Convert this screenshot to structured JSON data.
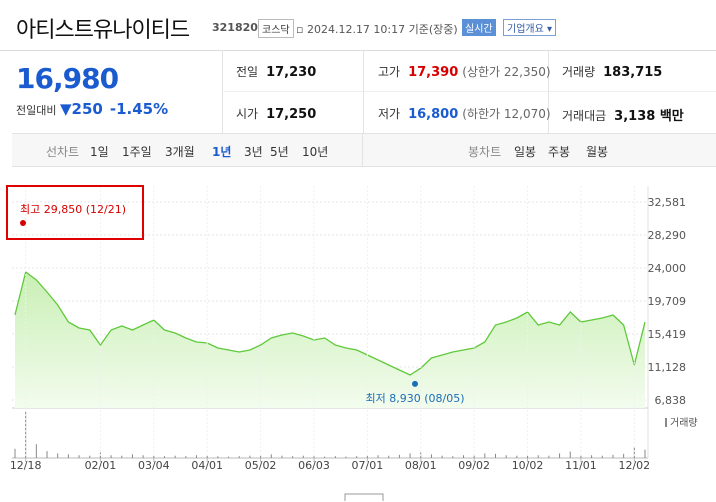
{
  "header": {
    "name": "아티스트유나이티드",
    "code": "321820",
    "market": "코스닥",
    "datetime": "2024.12.17 10:17 기준(장중)",
    "realtime": "실시간",
    "company": "기업개요"
  },
  "price": {
    "current": "16,980",
    "change_label": "전일대비",
    "change": "250",
    "rate": "-1.45%"
  },
  "stats": [
    [
      {
        "label": "전일",
        "value": "17,230"
      },
      {
        "label": "고가",
        "value": "17,390",
        "note": "(상한가 22,350)"
      },
      {
        "label": "거래량",
        "value": "183,715"
      }
    ],
    [
      {
        "label": "시가",
        "value": "17,250"
      },
      {
        "label": "저가",
        "value": "16,800",
        "note": "(하한가 12,070)"
      },
      {
        "label": "거래대금",
        "value": "3,138 백만"
      }
    ]
  ],
  "tabs": {
    "line_label": "선차트",
    "periods": [
      "1일",
      "1주일",
      "3개월",
      "1년",
      "3년",
      "5년",
      "10년"
    ],
    "selected_index": 3,
    "candle_label": "봉차트",
    "candles": [
      "일봉",
      "주봉",
      "월봉"
    ]
  },
  "chart_data": {
    "type": "line",
    "categories": [
      null,
      "12/18",
      null,
      null,
      null,
      null,
      null,
      null,
      "02/01",
      null,
      null,
      null,
      null,
      "03/04",
      null,
      null,
      null,
      null,
      "04/01",
      null,
      null,
      null,
      null,
      "05/02",
      null,
      null,
      null,
      null,
      "06/03",
      null,
      null,
      null,
      null,
      "07/01",
      null,
      null,
      null,
      null,
      "08/01",
      null,
      null,
      null,
      null,
      "09/02",
      null,
      null,
      null,
      null,
      "10/02",
      null,
      null,
      null,
      null,
      "11/01",
      null,
      null,
      null,
      null,
      "12/02",
      null
    ],
    "values": [
      17900,
      23480,
      22440,
      20880,
      19190,
      16980,
      16200,
      15940,
      13990,
      15940,
      16460,
      15940,
      16590,
      17240,
      15940,
      15550,
      14900,
      14380,
      14250,
      13600,
      13340,
      13080,
      13340,
      13990,
      14900,
      15290,
      15550,
      15160,
      14640,
      14900,
      13990,
      13600,
      13340,
      12690,
      12040,
      11390,
      10740,
      10090,
      10990,
      12300,
      12690,
      13080,
      13340,
      13600,
      14380,
      16590,
      16980,
      17500,
      18280,
      16590,
      16980,
      16590,
      18280,
      16980,
      17240,
      17500,
      17890,
      16590,
      11390,
      16980
    ],
    "volume": [
      20,
      100,
      30,
      15,
      10,
      8,
      6,
      5,
      12,
      6,
      5,
      8,
      6,
      5,
      4,
      5,
      4,
      6,
      5,
      4,
      3,
      4,
      5,
      6,
      8,
      5,
      4,
      5,
      4,
      3,
      4,
      3,
      4,
      5,
      6,
      5,
      7,
      10,
      12,
      8,
      5,
      4,
      6,
      8,
      10,
      9,
      6,
      5,
      8,
      6,
      5,
      10,
      14,
      8,
      6,
      5,
      7,
      9,
      25,
      18
    ],
    "volume_lim": [
      0,
      100
    ],
    "volume_label": "거래량",
    "color": "#5fc93a",
    "ylim": [
      6838,
      32581
    ],
    "yticks": [
      {
        "value": 32581,
        "label": "32,581"
      },
      {
        "value": 28290,
        "label": "28,290"
      },
      {
        "value": 24000,
        "label": "24,000"
      },
      {
        "value": 19709,
        "label": "19,709"
      },
      {
        "value": 15419,
        "label": "15,419"
      },
      {
        "value": 11128,
        "label": "11,128"
      },
      {
        "value": 6838,
        "label": "6,838"
      }
    ],
    "high": {
      "label": "최고",
      "value": 29850,
      "value_label": "29,850",
      "date": "(12/21)"
    },
    "low": {
      "label": "최저",
      "value": 8930,
      "value_label": "8,930",
      "date": "(08/05)"
    }
  }
}
